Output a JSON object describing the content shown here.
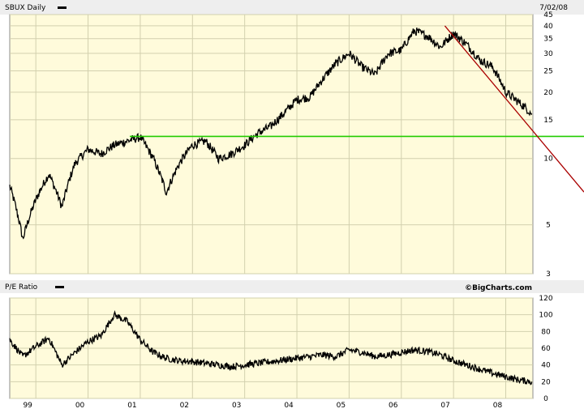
{
  "chart_data": [
    {
      "type": "line",
      "title": "SBUX Daily",
      "date_label": "7/02/08",
      "y_scale": "log",
      "ylim": [
        3,
        45
      ],
      "y_ticks": [
        3,
        5,
        10,
        15,
        20,
        25,
        30,
        35,
        40,
        45
      ],
      "x_ticks": [
        "99",
        "00",
        "01",
        "02",
        "03",
        "04",
        "05",
        "06",
        "07",
        "08"
      ],
      "grid": true,
      "series": [
        {
          "name": "",
          "x": [
            "1998-07",
            "1998-10",
            "1999-01",
            "1999-04",
            "1999-07",
            "1999-10",
            "2000-01",
            "2000-04",
            "2000-07",
            "2000-10",
            "2001-01",
            "2001-04",
            "2001-07",
            "2001-10",
            "2002-01",
            "2002-04",
            "2002-07",
            "2002-10",
            "2003-01",
            "2003-04",
            "2003-07",
            "2003-10",
            "2004-01",
            "2004-04",
            "2004-07",
            "2004-10",
            "2005-01",
            "2005-04",
            "2005-07",
            "2005-10",
            "2006-01",
            "2006-04",
            "2006-07",
            "2006-10",
            "2007-01",
            "2007-04",
            "2007-07",
            "2007-10",
            "2008-01",
            "2008-04",
            "2008-07"
          ],
          "y": [
            7.5,
            4.3,
            6.5,
            8.5,
            6.0,
            9.5,
            11.0,
            10.5,
            11.5,
            12.0,
            12.5,
            10.0,
            7.0,
            9.5,
            11.5,
            12.0,
            10.0,
            10.5,
            11.5,
            13.0,
            14.0,
            16.0,
            18.5,
            19.0,
            23.0,
            27.0,
            30.0,
            26.0,
            24.0,
            30.0,
            31.0,
            38.0,
            36.0,
            32.0,
            37.0,
            33.0,
            28.0,
            26.0,
            20.0,
            18.0,
            16.0
          ]
        }
      ],
      "annotations": [
        {
          "kind": "horizontal-line",
          "y": 12.6,
          "color": "#22cc00"
        },
        {
          "kind": "trend-line",
          "from": [
            "2006-11",
            40.0
          ],
          "to": [
            "2008-07",
            13.5
          ],
          "color": "#aa0000"
        }
      ]
    },
    {
      "type": "line",
      "title": "P/E Ratio",
      "credit": "©BigCharts.com",
      "ylim": [
        0,
        120
      ],
      "y_ticks": [
        0,
        20,
        40,
        60,
        80,
        100,
        120
      ],
      "grid": true,
      "series": [
        {
          "name": "",
          "x": [
            "1998-07",
            "1998-10",
            "1999-01",
            "1999-04",
            "1999-07",
            "1999-10",
            "2000-01",
            "2000-04",
            "2000-07",
            "2000-10",
            "2001-01",
            "2001-04",
            "2001-07",
            "2001-10",
            "2002-01",
            "2002-04",
            "2002-07",
            "2002-10",
            "2003-01",
            "2003-04",
            "2003-07",
            "2003-10",
            "2004-01",
            "2004-04",
            "2004-07",
            "2004-10",
            "2005-01",
            "2005-04",
            "2005-07",
            "2005-10",
            "2006-01",
            "2006-04",
            "2006-07",
            "2006-10",
            "2007-01",
            "2007-04",
            "2007-07",
            "2007-10",
            "2008-01",
            "2008-04",
            "2008-07"
          ],
          "y": [
            70,
            50,
            62,
            72,
            40,
            55,
            68,
            75,
            100,
            92,
            70,
            55,
            48,
            45,
            44,
            42,
            40,
            38,
            40,
            42,
            44,
            46,
            48,
            50,
            52,
            50,
            58,
            55,
            50,
            52,
            55,
            58,
            56,
            52,
            45,
            40,
            35,
            30,
            26,
            22,
            20
          ]
        }
      ]
    }
  ],
  "colors": {
    "panel_bg": "#fffbdb",
    "border": "#8c8c8c",
    "grid": "#d2d0ae",
    "header_bg": "#eeeeee",
    "line": "#000000",
    "support": "#22cc00",
    "resistance": "#aa0000"
  }
}
